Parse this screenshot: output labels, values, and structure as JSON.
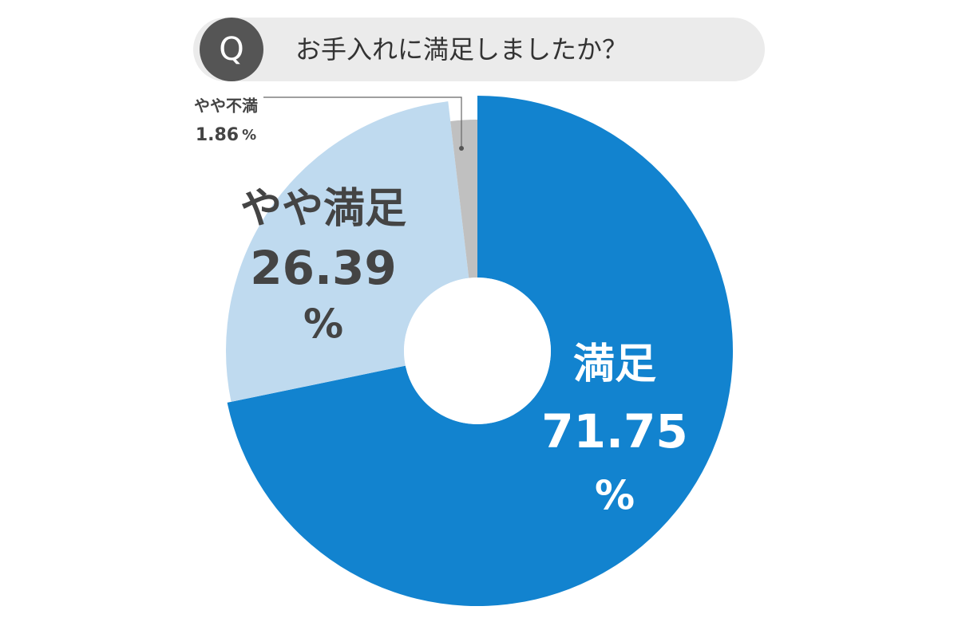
{
  "chart_data": {
    "type": "donut",
    "question_marker": "Q",
    "title": "お手入れに満足しましたか？",
    "categories": [
      "満足",
      "やや満足",
      "やや不満"
    ],
    "values": [
      71.75,
      26.39,
      1.86
    ],
    "unit": "%",
    "colors": [
      "#1283cf",
      "#bfdaef",
      "#c0c0c0"
    ]
  }
}
